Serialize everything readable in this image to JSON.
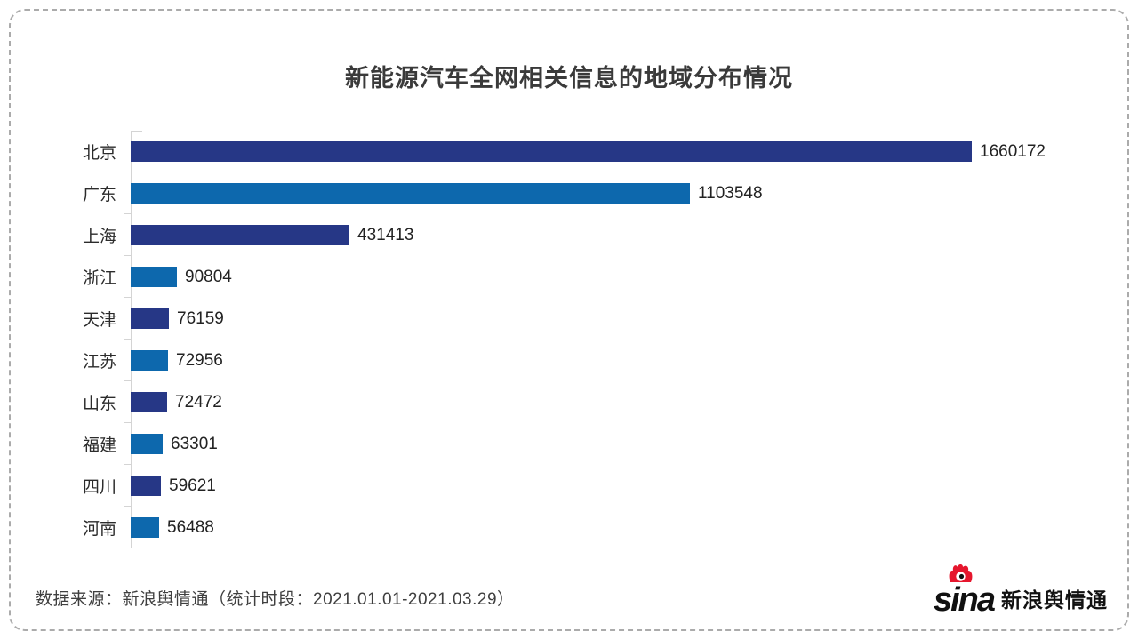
{
  "title": "新能源汽车全网相关信息的地域分布情况",
  "chart_data": {
    "type": "bar",
    "orientation": "horizontal",
    "title": "新能源汽车全网相关信息的地域分布情况",
    "categories": [
      "北京",
      "广东",
      "上海",
      "浙江",
      "天津",
      "江苏",
      "山东",
      "福建",
      "四川",
      "河南"
    ],
    "values": [
      1660172,
      1103548,
      431413,
      90804,
      76159,
      72956,
      72472,
      63301,
      59621,
      56488
    ],
    "xlim": [
      0,
      1660172
    ],
    "value_labels_shown": true,
    "bar_colors_alternating": [
      "#263786",
      "#0d68ad"
    ],
    "legend": "none",
    "grid": "off"
  },
  "footer": {
    "source_text": "数据来源：新浪舆情通（统计时段：2021.01.01-2021.03.29）"
  },
  "logo": {
    "wordmark": "sina",
    "product_name": "新浪舆情通"
  },
  "colors": {
    "bar_dark": "#263786",
    "bar_light": "#0d68ad",
    "axis": "#d4d4d4",
    "title_text": "#3a3a3a",
    "body_text": "#2b2b2b",
    "border_dash": "#ababab",
    "logo_red": "#e6162d",
    "background": "#ffffff"
  }
}
